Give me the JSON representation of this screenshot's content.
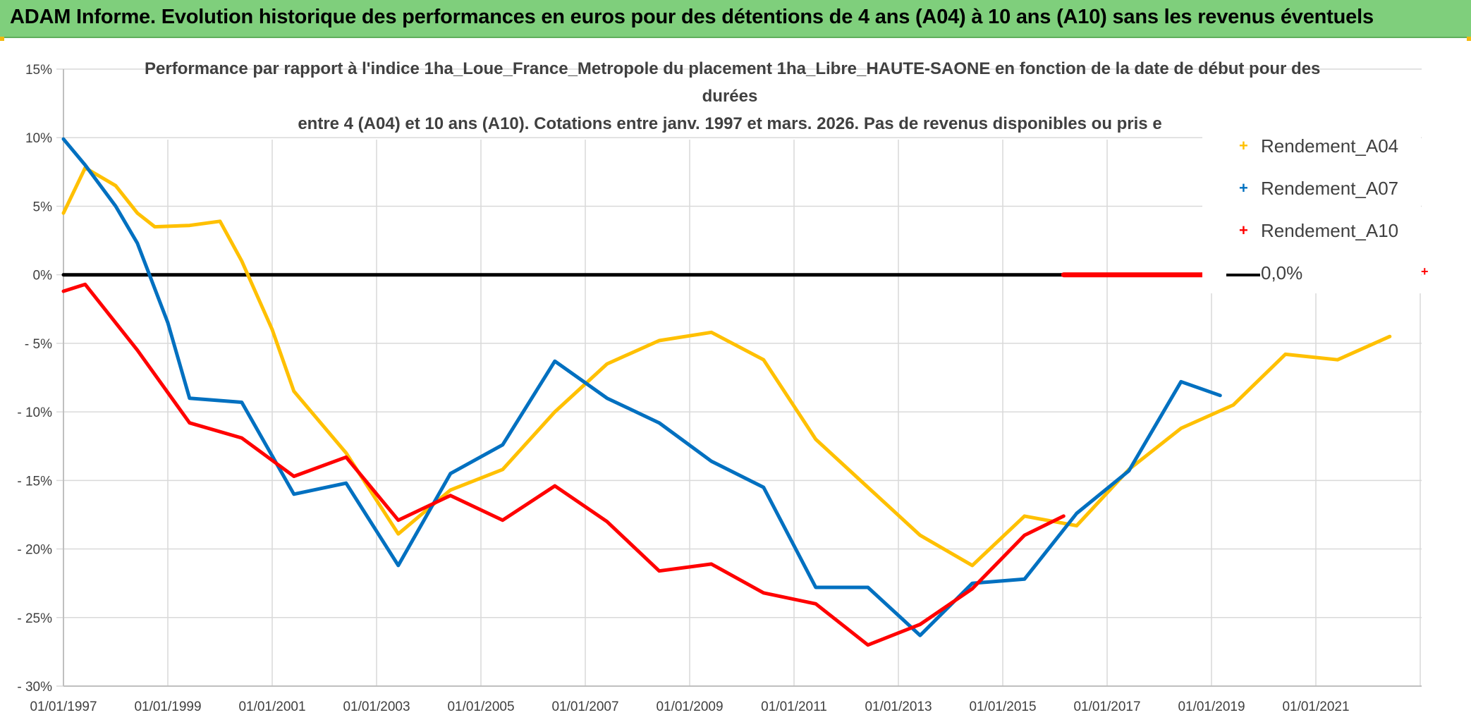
{
  "header": {
    "banner_title": "ADAM Informe. Evolution historique des performances en euros pour des détentions de 4 ans (A04) à 10 ans (A10) sans les revenus éventuels"
  },
  "colors": {
    "banner": "#7fcf7c",
    "A04": "#ffc000",
    "A07": "#0070c0",
    "A10": "#ff0000",
    "zero": "#000000",
    "grid": "#d9d9d9"
  },
  "chart_data": {
    "type": "line",
    "title_lines": [
      "Performance par rapport à l'indice 1ha_Loue_France_Metropole  du placement 1ha_Libre_HAUTE-SAONE en fonction de la date de début pour des",
      "durées",
      "entre 4 (A04) et 10 ans (A10). Cotations entre janv. 1997 et mars. 2026. Pas de revenus disponibles ou pris e"
    ],
    "xlabel": "",
    "ylabel": "",
    "x_ticks": [
      "01/01/1997",
      "01/01/1999",
      "01/01/2001",
      "01/01/2003",
      "01/01/2005",
      "01/01/2007",
      "01/01/2009",
      "01/01/2011",
      "01/01/2013",
      "01/01/2015",
      "01/01/2017",
      "01/01/2019",
      "01/01/2021"
    ],
    "y_ticks": [
      "15%",
      "10%",
      "5%",
      "0%",
      "- 5%",
      "- 10%",
      "- 15%",
      "- 20%",
      "- 25%",
      "- 30%"
    ],
    "x_range": [
      "1997-01",
      "2023-03"
    ],
    "ylim": [
      -30,
      15
    ],
    "grid": true,
    "legend_position": "right",
    "legend_extra_marker": "+",
    "series": [
      {
        "name": "Rendement_A04",
        "key": "A04",
        "points": [
          [
            "1997-01",
            4.5
          ],
          [
            "1997-06",
            7.8
          ],
          [
            "1998-01",
            6.5
          ],
          [
            "1998-06",
            4.5
          ],
          [
            "1998-10",
            3.5
          ],
          [
            "1999-06",
            3.6
          ],
          [
            "2000-01",
            3.9
          ],
          [
            "2000-06",
            1.0
          ],
          [
            "2001-01",
            -4.0
          ],
          [
            "2001-06",
            -8.5
          ],
          [
            "2002-06",
            -13.0
          ],
          [
            "2003-06",
            -18.9
          ],
          [
            "2004-06",
            -15.7
          ],
          [
            "2005-06",
            -14.2
          ],
          [
            "2006-06",
            -10.0
          ],
          [
            "2007-06",
            -6.5
          ],
          [
            "2008-06",
            -4.8
          ],
          [
            "2009-06",
            -4.2
          ],
          [
            "2010-06",
            -6.2
          ],
          [
            "2011-06",
            -12.0
          ],
          [
            "2012-06",
            -15.5
          ],
          [
            "2013-06",
            -19.0
          ],
          [
            "2014-06",
            -21.2
          ],
          [
            "2015-06",
            -17.6
          ],
          [
            "2016-06",
            -18.3
          ],
          [
            "2017-06",
            -14.2
          ],
          [
            "2018-06",
            -11.2
          ],
          [
            "2019-06",
            -9.5
          ],
          [
            "2020-06",
            -5.8
          ],
          [
            "2021-06",
            -6.2
          ],
          [
            "2022-06",
            -4.5
          ]
        ]
      },
      {
        "name": "Rendement_A07",
        "key": "A07",
        "points": [
          [
            "1997-01",
            9.9
          ],
          [
            "1997-06",
            8.0
          ],
          [
            "1998-01",
            5.0
          ],
          [
            "1998-06",
            2.3
          ],
          [
            "1999-01",
            -3.5
          ],
          [
            "1999-06",
            -9.0
          ],
          [
            "2000-06",
            -9.3
          ],
          [
            "2001-06",
            -16.0
          ],
          [
            "2002-06",
            -15.2
          ],
          [
            "2003-06",
            -21.2
          ],
          [
            "2004-06",
            -14.5
          ],
          [
            "2005-06",
            -12.4
          ],
          [
            "2006-06",
            -6.3
          ],
          [
            "2007-06",
            -9.0
          ],
          [
            "2008-06",
            -10.8
          ],
          [
            "2009-06",
            -13.6
          ],
          [
            "2010-06",
            -15.5
          ],
          [
            "2011-06",
            -22.8
          ],
          [
            "2012-06",
            -22.8
          ],
          [
            "2013-06",
            -26.3
          ],
          [
            "2014-06",
            -22.5
          ],
          [
            "2015-06",
            -22.2
          ],
          [
            "2016-06",
            -17.4
          ],
          [
            "2017-06",
            -14.3
          ],
          [
            "2018-06",
            -7.8
          ],
          [
            "2019-03",
            -8.8
          ]
        ]
      },
      {
        "name": "Rendement_A10",
        "key": "A10",
        "points": [
          [
            "1997-01",
            -1.2
          ],
          [
            "1997-06",
            -0.7
          ],
          [
            "1998-06",
            -5.5
          ],
          [
            "1999-06",
            -10.8
          ],
          [
            "2000-06",
            -11.9
          ],
          [
            "2001-06",
            -14.7
          ],
          [
            "2002-06",
            -13.3
          ],
          [
            "2003-06",
            -17.9
          ],
          [
            "2004-06",
            -16.1
          ],
          [
            "2005-06",
            -17.9
          ],
          [
            "2006-06",
            -15.4
          ],
          [
            "2007-06",
            -18.0
          ],
          [
            "2008-06",
            -21.6
          ],
          [
            "2009-06",
            -21.1
          ],
          [
            "2010-06",
            -23.2
          ],
          [
            "2011-06",
            -24.0
          ],
          [
            "2012-06",
            -27.0
          ],
          [
            "2013-06",
            -25.5
          ],
          [
            "2014-06",
            -22.9
          ],
          [
            "2015-06",
            -19.0
          ],
          [
            "2016-03",
            -17.6
          ]
        ]
      },
      {
        "name": "0,0%",
        "key": "zero",
        "points": [
          [
            "1997-01",
            0.0
          ],
          [
            "2016-03",
            0.0
          ]
        ]
      },
      {
        "name": "",
        "key": "zero_red",
        "points": [
          [
            "2016-03",
            0.0
          ],
          [
            "2021-01",
            0.0
          ]
        ]
      }
    ]
  }
}
